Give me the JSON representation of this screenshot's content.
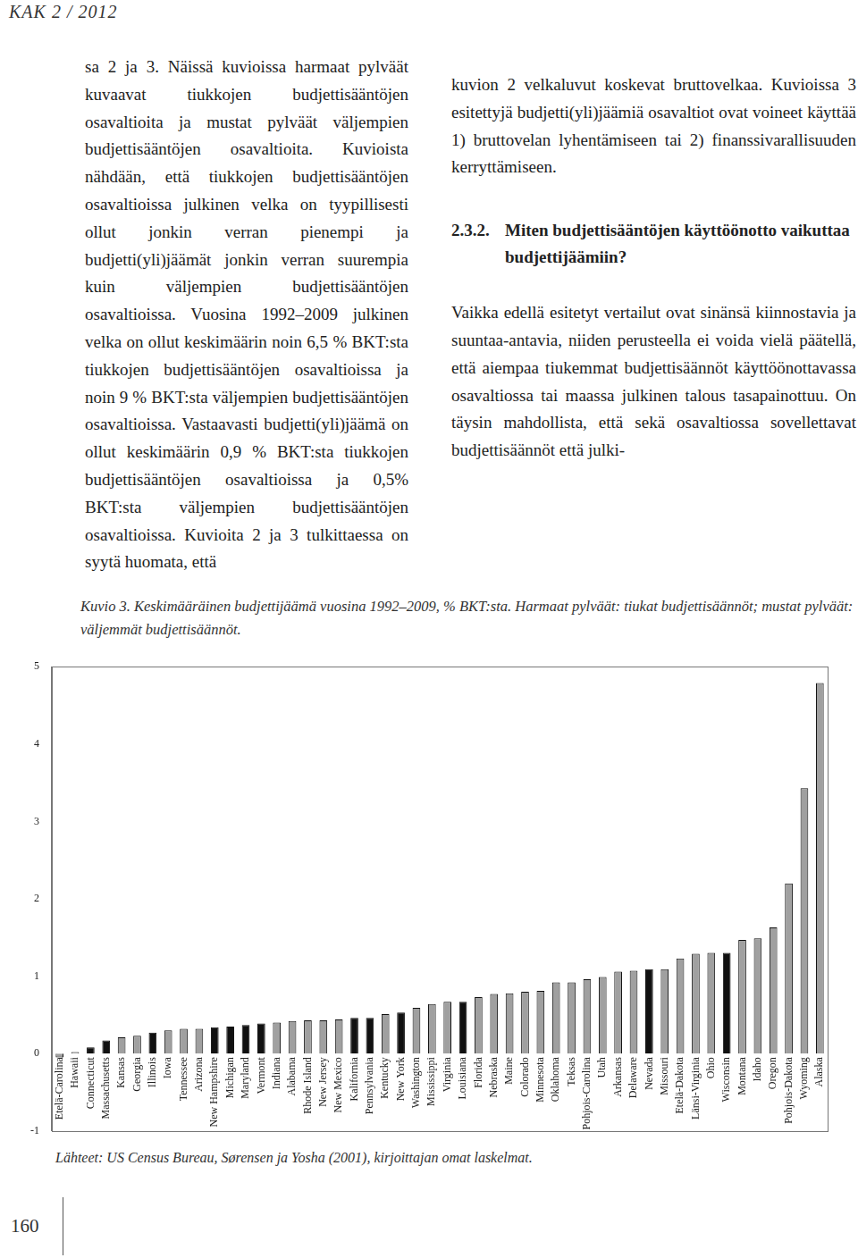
{
  "header": {
    "journal": "KAK 2 / 2012"
  },
  "left_column": {
    "paragraphs": [
      "sa 2 ja 3. Näissä kuvioissa harmaat pylväät kuvaavat tiukkojen budjettisääntöjen osavaltioita ja mustat pylväät väljempien budjettisääntöjen osavaltioita. Kuvioista nähdään, että tiukkojen budjettisääntöjen osavaltioissa julkinen velka on tyypillisesti ollut jonkin verran pienempi ja budjetti(yli)jäämät jonkin verran suurempia kuin väljempien budjettisääntöjen osavaltioissa. Vuosina 1992–2009 julkinen velka on ollut keskimäärin noin 6,5 % BKT:sta tiukkojen budjettisääntöjen osavaltioissa ja noin 9 % BKT:sta väljempien budjettisääntöjen osavaltioissa. Vastaavasti budjetti(yli)jäämä on ollut keskimäärin 0,9 % BKT:sta tiukkojen budjettisääntöjen osavaltioissa ja 0,5% BKT:sta väljempien budjettisääntöjen osavaltioissa. Kuvioita 2 ja 3 tulkittaessa on syytä huomata, että"
    ]
  },
  "right_column": {
    "paragraphs_before": [
      "kuvion 2 velkaluvut koskevat bruttovelkaa. Kuvioissa 3 esitettyjä budjetti(yli)jäämiä osavaltiot ovat voineet käyttää 1) bruttovelan lyhentämiseen tai 2) finanssivarallisuuden kerryttämiseen."
    ],
    "section": {
      "number": "2.3.2.",
      "title": "Miten budjettisääntöjen käyttöönotto vaikuttaa budjettijäämiin?"
    },
    "paragraphs_after": [
      "Vaikka edellä esitetyt vertailut ovat sinänsä kiinnostavia ja suuntaa-antavia, niiden perusteella ei voida vielä päätellä, että aiempaa tiukemmat budjettisäännöt käyttöönottavassa osavaltiossa tai maassa julkinen talous tasapainottuu. On täysin mahdollista, että sekä osavaltiossa sovellettavat budjettisäännöt että julki-"
    ]
  },
  "chart_data": {
    "type": "bar",
    "title": "Kuvio 3. Keskimääräinen budjettijäämä vuosina 1992–2009, % BKT:sta. Harmaat pylväät: tiukat budjettisäännöt; mustat pylväät: väljemmät budjettisäännöt.",
    "categories": [
      "Etelä-Carolina",
      "Hawaii",
      "Connecticut",
      "Massachusetts",
      "Kansas",
      "Georgia",
      "Illinois",
      "Iowa",
      "Tennessee",
      "Arizona",
      "New Hampshire",
      "Michigan",
      "Maryland",
      "Vermont",
      "Indiana",
      "Alabama",
      "Rhode Island",
      "New Jersey",
      "New Mexico",
      "Kalifornia",
      "Pennsylvania",
      "Kentucky",
      "New York",
      "Washington",
      "Mississippi",
      "Virginia",
      "Louisiana",
      "Florida",
      "Nebraska",
      "Maine",
      "Colorado",
      "Minnesota",
      "Oklahoma",
      "Teksas",
      "Pohjois-Carolina",
      "Utah",
      "Arkansas",
      "Delaware",
      "Nevada",
      "Missouri",
      "Etelä-Dakota",
      "Länsi-Virginia",
      "Ohio",
      "Wisconsin",
      "Montana",
      "Idaho",
      "Oregon",
      "Pohjois-Dakota",
      "Wyoming",
      "Alaska"
    ],
    "values": [
      -0.05,
      0.02,
      0.08,
      0.17,
      0.21,
      0.23,
      0.27,
      0.3,
      0.32,
      0.32,
      0.34,
      0.35,
      0.37,
      0.39,
      0.4,
      0.42,
      0.43,
      0.43,
      0.44,
      0.46,
      0.46,
      0.51,
      0.53,
      0.59,
      0.64,
      0.67,
      0.67,
      0.73,
      0.77,
      0.78,
      0.8,
      0.81,
      0.92,
      0.92,
      0.96,
      0.99,
      1.06,
      1.07,
      1.09,
      1.09,
      1.23,
      1.29,
      1.3,
      1.3,
      1.47,
      1.49,
      1.63,
      2.2,
      3.43,
      4.79
    ],
    "colors": [
      "#a0a0a0",
      "#a0a0a0",
      "#111111",
      "#111111",
      "#a0a0a0",
      "#a0a0a0",
      "#111111",
      "#a0a0a0",
      "#a0a0a0",
      "#a0a0a0",
      "#111111",
      "#111111",
      "#111111",
      "#111111",
      "#a0a0a0",
      "#a0a0a0",
      "#a0a0a0",
      "#a0a0a0",
      "#a0a0a0",
      "#111111",
      "#111111",
      "#a0a0a0",
      "#111111",
      "#a0a0a0",
      "#a0a0a0",
      "#a0a0a0",
      "#111111",
      "#a0a0a0",
      "#a0a0a0",
      "#a0a0a0",
      "#a0a0a0",
      "#a0a0a0",
      "#a0a0a0",
      "#a0a0a0",
      "#a0a0a0",
      "#a0a0a0",
      "#a0a0a0",
      "#a0a0a0",
      "#111111",
      "#a0a0a0",
      "#a0a0a0",
      "#a0a0a0",
      "#a0a0a0",
      "#111111",
      "#a0a0a0",
      "#a0a0a0",
      "#a0a0a0",
      "#a0a0a0",
      "#a0a0a0",
      "#a0a0a0"
    ],
    "ylim": [
      -1,
      5
    ],
    "yticks": [
      -1,
      0,
      1,
      2,
      3,
      4,
      5
    ],
    "grid": false
  },
  "figure": {
    "source": "Lähteet: US Census Bureau, Sørensen ja Yosha (2001), kirjoittajan omat laskelmat."
  },
  "footer": {
    "page_number": "160"
  }
}
